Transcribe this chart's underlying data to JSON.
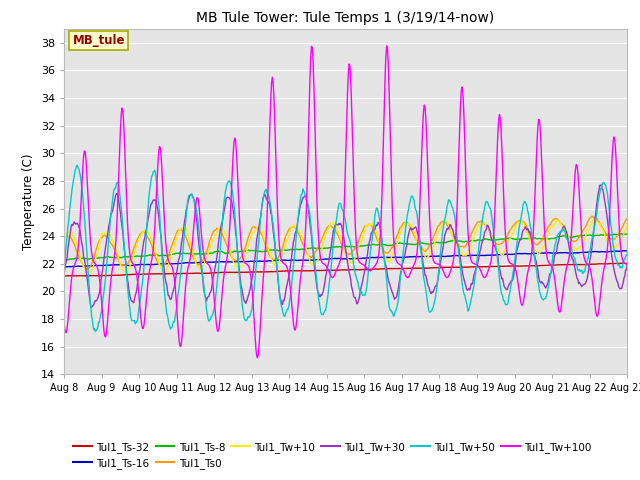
{
  "title": "MB Tule Tower: Tule Temps 1 (3/19/14-now)",
  "ylabel": "Temperature (C)",
  "ylim": [
    14,
    39
  ],
  "yticks": [
    14,
    16,
    18,
    20,
    22,
    24,
    26,
    28,
    30,
    32,
    34,
    36,
    38
  ],
  "xtick_labels": [
    "Aug 8",
    "Aug 9",
    "Aug 10",
    "Aug 11",
    "Aug 12",
    "Aug 13",
    "Aug 14",
    "Aug 15",
    "Aug 16",
    "Aug 17",
    "Aug 18",
    "Aug 19",
    "Aug 20",
    "Aug 21",
    "Aug 22",
    "Aug 23"
  ],
  "bg_color": "#e5e5e5",
  "fig_bg": "#ffffff",
  "grid_color": "#ffffff",
  "series": {
    "Tul1_Ts-32": {
      "color": "#cc0000",
      "lw": 1.0
    },
    "Tul1_Ts-16": {
      "color": "#0000cc",
      "lw": 1.0
    },
    "Tul1_Ts-8": {
      "color": "#00bb00",
      "lw": 1.0
    },
    "Tul1_Ts0": {
      "color": "#ff9900",
      "lw": 1.0
    },
    "Tul1_Tw+10": {
      "color": "#ffee00",
      "lw": 1.0
    },
    "Tul1_Tw+30": {
      "color": "#9933cc",
      "lw": 1.0
    },
    "Tul1_Tw+50": {
      "color": "#00cccc",
      "lw": 1.0
    },
    "Tul1_Tw+100": {
      "color": "#ff00ff",
      "lw": 1.0
    }
  },
  "legend_box": {
    "text": "MB_tule",
    "bg": "#ffffcc",
    "border": "#aaaa00",
    "text_color": "#990000"
  }
}
